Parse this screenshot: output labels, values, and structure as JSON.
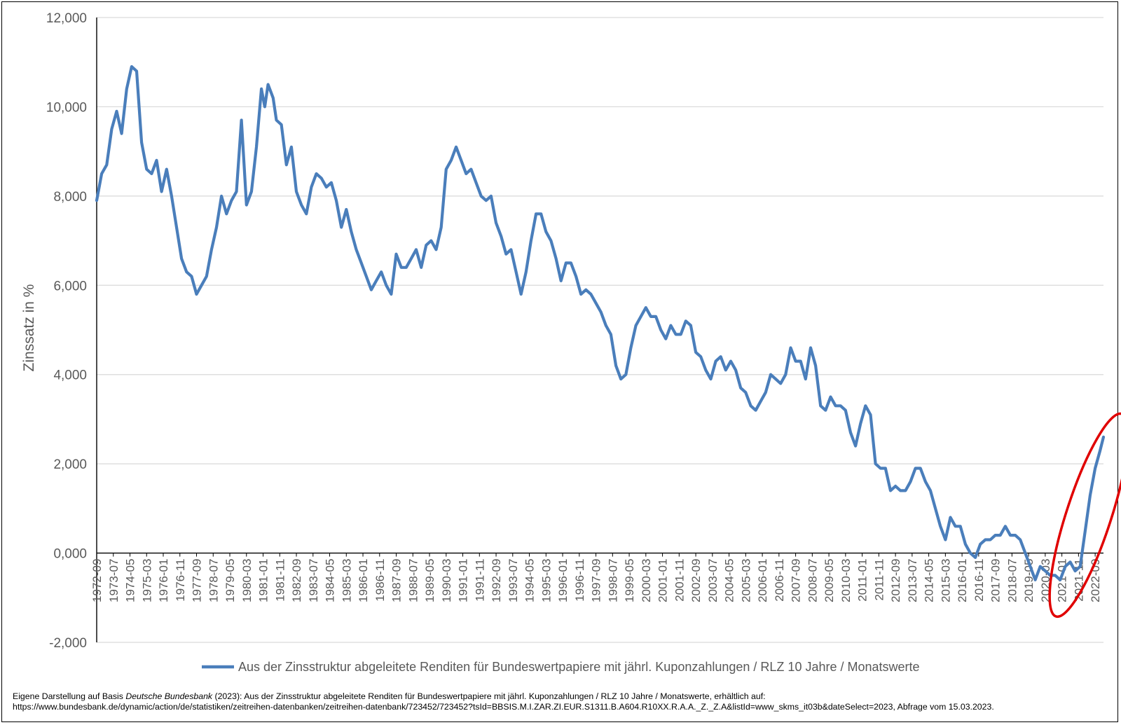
{
  "chart_data": {
    "type": "line",
    "ylabel": "Zinssatz in %",
    "xlabel": "",
    "ylim": [
      -2,
      12
    ],
    "yticks": [
      -2,
      0,
      2,
      4,
      6,
      8,
      10,
      12
    ],
    "ytick_labels": [
      "-2,000",
      "0,000",
      "2,000",
      "4,000",
      "6,000",
      "8,000",
      "10,000",
      "12,000"
    ],
    "grid": "horizontal",
    "legend_position": "bottom",
    "line_color": "#4a7ebb",
    "annotation_color": "#e00000",
    "x_start": "1972-09",
    "x_end": "2023-02",
    "xtick_labels": [
      "1972-09",
      "1973-07",
      "1974-05",
      "1975-03",
      "1976-01",
      "1976-11",
      "1977-09",
      "1978-07",
      "1979-05",
      "1980-03",
      "1981-01",
      "1981-11",
      "1982-09",
      "1983-07",
      "1984-05",
      "1985-03",
      "1986-01",
      "1986-11",
      "1987-09",
      "1988-07",
      "1989-05",
      "1990-03",
      "1991-01",
      "1991-11",
      "1992-09",
      "1993-07",
      "1994-05",
      "1995-03",
      "1996-01",
      "1996-11",
      "1997-09",
      "1998-07",
      "1999-05",
      "2000-03",
      "2001-01",
      "2001-11",
      "2002-09",
      "2003-07",
      "2004-05",
      "2005-03",
      "2006-01",
      "2006-11",
      "2007-09",
      "2008-07",
      "2009-05",
      "2010-03",
      "2011-01",
      "2011-11",
      "2012-09",
      "2013-07",
      "2014-05",
      "2015-03",
      "2016-01",
      "2016-11",
      "2017-09",
      "2018-07",
      "2019-05",
      "2020-03",
      "2021-01",
      "2021-11",
      "2022-09"
    ],
    "series": [
      {
        "name": "Aus der Zinsstruktur abgeleitete Renditen für Bundeswertpapiere  mit jährl. Kuponzahlungen / RLZ 10 Jahre / Monatswerte",
        "points": [
          [
            "1972-09",
            7.9
          ],
          [
            "1972-12",
            8.5
          ],
          [
            "1973-03",
            8.7
          ],
          [
            "1973-06",
            9.5
          ],
          [
            "1973-09",
            9.9
          ],
          [
            "1973-12",
            9.4
          ],
          [
            "1974-03",
            10.4
          ],
          [
            "1974-06",
            10.9
          ],
          [
            "1974-09",
            10.8
          ],
          [
            "1974-12",
            9.2
          ],
          [
            "1975-03",
            8.6
          ],
          [
            "1975-06",
            8.5
          ],
          [
            "1975-09",
            8.8
          ],
          [
            "1975-12",
            8.1
          ],
          [
            "1976-03",
            8.6
          ],
          [
            "1976-06",
            8.0
          ],
          [
            "1976-09",
            7.3
          ],
          [
            "1976-12",
            6.6
          ],
          [
            "1977-03",
            6.3
          ],
          [
            "1977-06",
            6.2
          ],
          [
            "1977-09",
            5.8
          ],
          [
            "1977-12",
            6.0
          ],
          [
            "1978-03",
            6.2
          ],
          [
            "1978-06",
            6.8
          ],
          [
            "1978-09",
            7.3
          ],
          [
            "1978-12",
            8.0
          ],
          [
            "1979-03",
            7.6
          ],
          [
            "1979-06",
            7.9
          ],
          [
            "1979-09",
            8.1
          ],
          [
            "1979-12",
            9.7
          ],
          [
            "1980-03",
            7.8
          ],
          [
            "1980-06",
            8.1
          ],
          [
            "1980-09",
            9.1
          ],
          [
            "1980-12",
            10.4
          ],
          [
            "1981-02",
            10.0
          ],
          [
            "1981-04",
            10.5
          ],
          [
            "1981-07",
            10.2
          ],
          [
            "1981-09",
            9.7
          ],
          [
            "1981-12",
            9.6
          ],
          [
            "1982-03",
            8.7
          ],
          [
            "1982-06",
            9.1
          ],
          [
            "1982-09",
            8.1
          ],
          [
            "1982-12",
            7.8
          ],
          [
            "1983-03",
            7.6
          ],
          [
            "1983-06",
            8.2
          ],
          [
            "1983-09",
            8.5
          ],
          [
            "1983-12",
            8.4
          ],
          [
            "1984-03",
            8.2
          ],
          [
            "1984-06",
            8.3
          ],
          [
            "1984-09",
            7.9
          ],
          [
            "1984-12",
            7.3
          ],
          [
            "1985-03",
            7.7
          ],
          [
            "1985-06",
            7.2
          ],
          [
            "1985-09",
            6.8
          ],
          [
            "1985-12",
            6.5
          ],
          [
            "1986-03",
            6.2
          ],
          [
            "1986-06",
            5.9
          ],
          [
            "1986-09",
            6.1
          ],
          [
            "1986-12",
            6.3
          ],
          [
            "1987-03",
            6.0
          ],
          [
            "1987-06",
            5.8
          ],
          [
            "1987-09",
            6.7
          ],
          [
            "1987-12",
            6.4
          ],
          [
            "1988-03",
            6.4
          ],
          [
            "1988-06",
            6.6
          ],
          [
            "1988-09",
            6.8
          ],
          [
            "1988-12",
            6.4
          ],
          [
            "1989-03",
            6.9
          ],
          [
            "1989-06",
            7.0
          ],
          [
            "1989-09",
            6.8
          ],
          [
            "1989-12",
            7.3
          ],
          [
            "1990-03",
            8.6
          ],
          [
            "1990-06",
            8.8
          ],
          [
            "1990-09",
            9.1
          ],
          [
            "1990-12",
            8.8
          ],
          [
            "1991-03",
            8.5
          ],
          [
            "1991-06",
            8.6
          ],
          [
            "1991-09",
            8.3
          ],
          [
            "1991-12",
            8.0
          ],
          [
            "1992-03",
            7.9
          ],
          [
            "1992-06",
            8.0
          ],
          [
            "1992-09",
            7.4
          ],
          [
            "1992-12",
            7.1
          ],
          [
            "1993-03",
            6.7
          ],
          [
            "1993-06",
            6.8
          ],
          [
            "1993-09",
            6.3
          ],
          [
            "1993-12",
            5.8
          ],
          [
            "1994-03",
            6.3
          ],
          [
            "1994-06",
            7.0
          ],
          [
            "1994-09",
            7.6
          ],
          [
            "1994-12",
            7.6
          ],
          [
            "1995-03",
            7.2
          ],
          [
            "1995-06",
            7.0
          ],
          [
            "1995-09",
            6.6
          ],
          [
            "1995-12",
            6.1
          ],
          [
            "1996-03",
            6.5
          ],
          [
            "1996-06",
            6.5
          ],
          [
            "1996-09",
            6.2
          ],
          [
            "1996-12",
            5.8
          ],
          [
            "1997-03",
            5.9
          ],
          [
            "1997-06",
            5.8
          ],
          [
            "1997-09",
            5.6
          ],
          [
            "1997-12",
            5.4
          ],
          [
            "1998-03",
            5.1
          ],
          [
            "1998-06",
            4.9
          ],
          [
            "1998-09",
            4.2
          ],
          [
            "1998-12",
            3.9
          ],
          [
            "1999-03",
            4.0
          ],
          [
            "1999-06",
            4.6
          ],
          [
            "1999-09",
            5.1
          ],
          [
            "1999-12",
            5.3
          ],
          [
            "2000-03",
            5.5
          ],
          [
            "2000-06",
            5.3
          ],
          [
            "2000-09",
            5.3
          ],
          [
            "2000-12",
            5.0
          ],
          [
            "2001-03",
            4.8
          ],
          [
            "2001-06",
            5.1
          ],
          [
            "2001-09",
            4.9
          ],
          [
            "2001-12",
            4.9
          ],
          [
            "2002-03",
            5.2
          ],
          [
            "2002-06",
            5.1
          ],
          [
            "2002-09",
            4.5
          ],
          [
            "2002-12",
            4.4
          ],
          [
            "2003-03",
            4.1
          ],
          [
            "2003-06",
            3.9
          ],
          [
            "2003-09",
            4.3
          ],
          [
            "2003-12",
            4.4
          ],
          [
            "2004-03",
            4.1
          ],
          [
            "2004-06",
            4.3
          ],
          [
            "2004-09",
            4.1
          ],
          [
            "2004-12",
            3.7
          ],
          [
            "2005-03",
            3.6
          ],
          [
            "2005-06",
            3.3
          ],
          [
            "2005-09",
            3.2
          ],
          [
            "2005-12",
            3.4
          ],
          [
            "2006-03",
            3.6
          ],
          [
            "2006-06",
            4.0
          ],
          [
            "2006-09",
            3.9
          ],
          [
            "2006-12",
            3.8
          ],
          [
            "2007-03",
            4.0
          ],
          [
            "2007-06",
            4.6
          ],
          [
            "2007-09",
            4.3
          ],
          [
            "2007-12",
            4.3
          ],
          [
            "2008-03",
            3.9
          ],
          [
            "2008-06",
            4.6
          ],
          [
            "2008-09",
            4.2
          ],
          [
            "2008-12",
            3.3
          ],
          [
            "2009-03",
            3.2
          ],
          [
            "2009-06",
            3.5
          ],
          [
            "2009-09",
            3.3
          ],
          [
            "2009-12",
            3.3
          ],
          [
            "2010-03",
            3.2
          ],
          [
            "2010-06",
            2.7
          ],
          [
            "2010-09",
            2.4
          ],
          [
            "2010-12",
            2.9
          ],
          [
            "2011-03",
            3.3
          ],
          [
            "2011-06",
            3.1
          ],
          [
            "2011-09",
            2.0
          ],
          [
            "2011-12",
            1.9
          ],
          [
            "2012-03",
            1.9
          ],
          [
            "2012-06",
            1.4
          ],
          [
            "2012-09",
            1.5
          ],
          [
            "2012-12",
            1.4
          ],
          [
            "2013-03",
            1.4
          ],
          [
            "2013-06",
            1.6
          ],
          [
            "2013-09",
            1.9
          ],
          [
            "2013-12",
            1.9
          ],
          [
            "2014-03",
            1.6
          ],
          [
            "2014-06",
            1.4
          ],
          [
            "2014-09",
            1.0
          ],
          [
            "2014-12",
            0.6
          ],
          [
            "2015-03",
            0.3
          ],
          [
            "2015-06",
            0.8
          ],
          [
            "2015-09",
            0.6
          ],
          [
            "2015-12",
            0.6
          ],
          [
            "2016-03",
            0.2
          ],
          [
            "2016-06",
            0.0
          ],
          [
            "2016-09",
            -0.1
          ],
          [
            "2016-12",
            0.2
          ],
          [
            "2017-03",
            0.3
          ],
          [
            "2017-06",
            0.3
          ],
          [
            "2017-09",
            0.4
          ],
          [
            "2017-12",
            0.4
          ],
          [
            "2018-03",
            0.6
          ],
          [
            "2018-06",
            0.4
          ],
          [
            "2018-09",
            0.4
          ],
          [
            "2018-12",
            0.3
          ],
          [
            "2019-03",
            0.0
          ],
          [
            "2019-06",
            -0.3
          ],
          [
            "2019-09",
            -0.6
          ],
          [
            "2019-12",
            -0.3
          ],
          [
            "2020-03",
            -0.4
          ],
          [
            "2020-06",
            -0.5
          ],
          [
            "2020-09",
            -0.5
          ],
          [
            "2020-12",
            -0.6
          ],
          [
            "2021-03",
            -0.3
          ],
          [
            "2021-06",
            -0.2
          ],
          [
            "2021-09",
            -0.4
          ],
          [
            "2021-12",
            -0.3
          ],
          [
            "2022-03",
            0.5
          ],
          [
            "2022-06",
            1.3
          ],
          [
            "2022-09",
            1.9
          ],
          [
            "2022-12",
            2.3
          ],
          [
            "2023-02",
            2.6
          ]
        ]
      }
    ],
    "annotation": "ellipse-highlight-2021-2023"
  },
  "source": {
    "prefix": "Eigene Darstellung auf Basis ",
    "publisher": "Deutsche Bundesbank",
    "rest_line1": " (2023): Aus der Zinsstruktur abgeleitete Renditen für Bundeswertpapiere  mit jährl. Kuponzahlungen / RLZ 10 Jahre / Monatswerte, erhältlich auf:",
    "line2": "https://www.bundesbank.de/dynamic/action/de/statistiken/zeitreihen-datenbanken/zeitreihen-datenbank/723452/723452?tsId=BBSIS.M.I.ZAR.ZI.EUR.S1311.B.A604.R10XX.R.A.A._Z._Z.A&listId=www_skms_it03b&dateSelect=2023, Abfrage vom 15.03.2023."
  }
}
